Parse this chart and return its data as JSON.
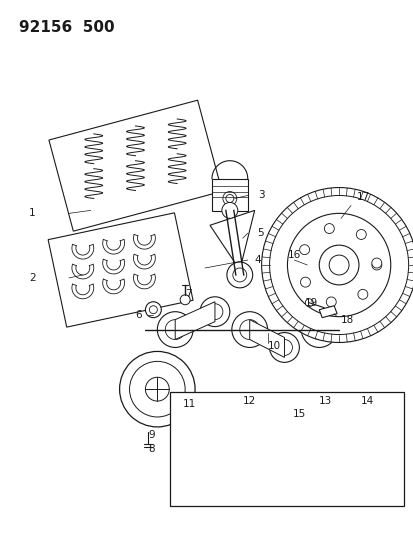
{
  "title": "92156  500",
  "bg_color": "#ffffff",
  "line_color": "#1a1a1a",
  "title_fontsize": 11,
  "label_fontsize": 7.5,
  "fig_width": 4.14,
  "fig_height": 5.33,
  "dpi": 100
}
